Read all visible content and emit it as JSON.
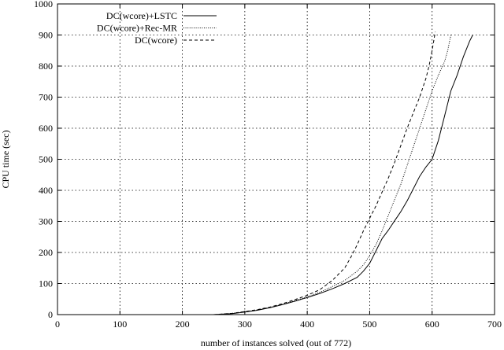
{
  "chart_data": {
    "type": "line",
    "title": "",
    "xlabel": "number of instances solved (out of 772)",
    "ylabel": "CPU time (sec)",
    "xlim": [
      0,
      700
    ],
    "ylim": [
      0,
      1000
    ],
    "x_ticks": [
      0,
      100,
      200,
      300,
      400,
      500,
      600,
      700
    ],
    "y_ticks": [
      0,
      100,
      200,
      300,
      400,
      500,
      600,
      700,
      800,
      900,
      1000
    ],
    "grid": true,
    "legend_position": "top-right",
    "series": [
      {
        "name": "DC(wcore)+LSTC",
        "style": "solid",
        "color": "#000000",
        "x": [
          250,
          280,
          300,
          320,
          340,
          360,
          380,
          400,
          420,
          440,
          460,
          480,
          490,
          500,
          510,
          520,
          530,
          540,
          550,
          560,
          570,
          580,
          590,
          600,
          610,
          620,
          630,
          640,
          650,
          660,
          665
        ],
        "y": [
          0,
          3,
          8,
          14,
          22,
          32,
          43,
          55,
          68,
          83,
          100,
          120,
          140,
          165,
          205,
          245,
          272,
          302,
          332,
          366,
          405,
          445,
          475,
          500,
          560,
          640,
          720,
          770,
          830,
          880,
          900
        ]
      },
      {
        "name": "DC(wcore)+Rec-MR",
        "style": "dotted",
        "color": "#000000",
        "x": [
          250,
          280,
          300,
          320,
          340,
          360,
          380,
          400,
          420,
          440,
          460,
          480,
          490,
          500,
          510,
          520,
          530,
          540,
          550,
          560,
          570,
          580,
          590,
          600,
          610,
          620,
          625,
          630
        ],
        "y": [
          0,
          4,
          9,
          15,
          23,
          33,
          45,
          57,
          72,
          90,
          110,
          140,
          160,
          190,
          225,
          270,
          320,
          370,
          420,
          480,
          540,
          600,
          660,
          720,
          770,
          815,
          850,
          900
        ]
      },
      {
        "name": "DC(wcore)",
        "style": "dashed",
        "color": "#000000",
        "x": [
          250,
          280,
          300,
          320,
          340,
          360,
          380,
          400,
          420,
          440,
          460,
          470,
          480,
          490,
          500,
          510,
          520,
          530,
          540,
          550,
          560,
          570,
          580,
          590,
          595,
          600,
          605
        ],
        "y": [
          0,
          4,
          10,
          16,
          24,
          35,
          48,
          62,
          80,
          110,
          150,
          185,
          225,
          270,
          310,
          350,
          395,
          440,
          490,
          545,
          600,
          650,
          700,
          760,
          800,
          850,
          910
        ]
      }
    ]
  }
}
